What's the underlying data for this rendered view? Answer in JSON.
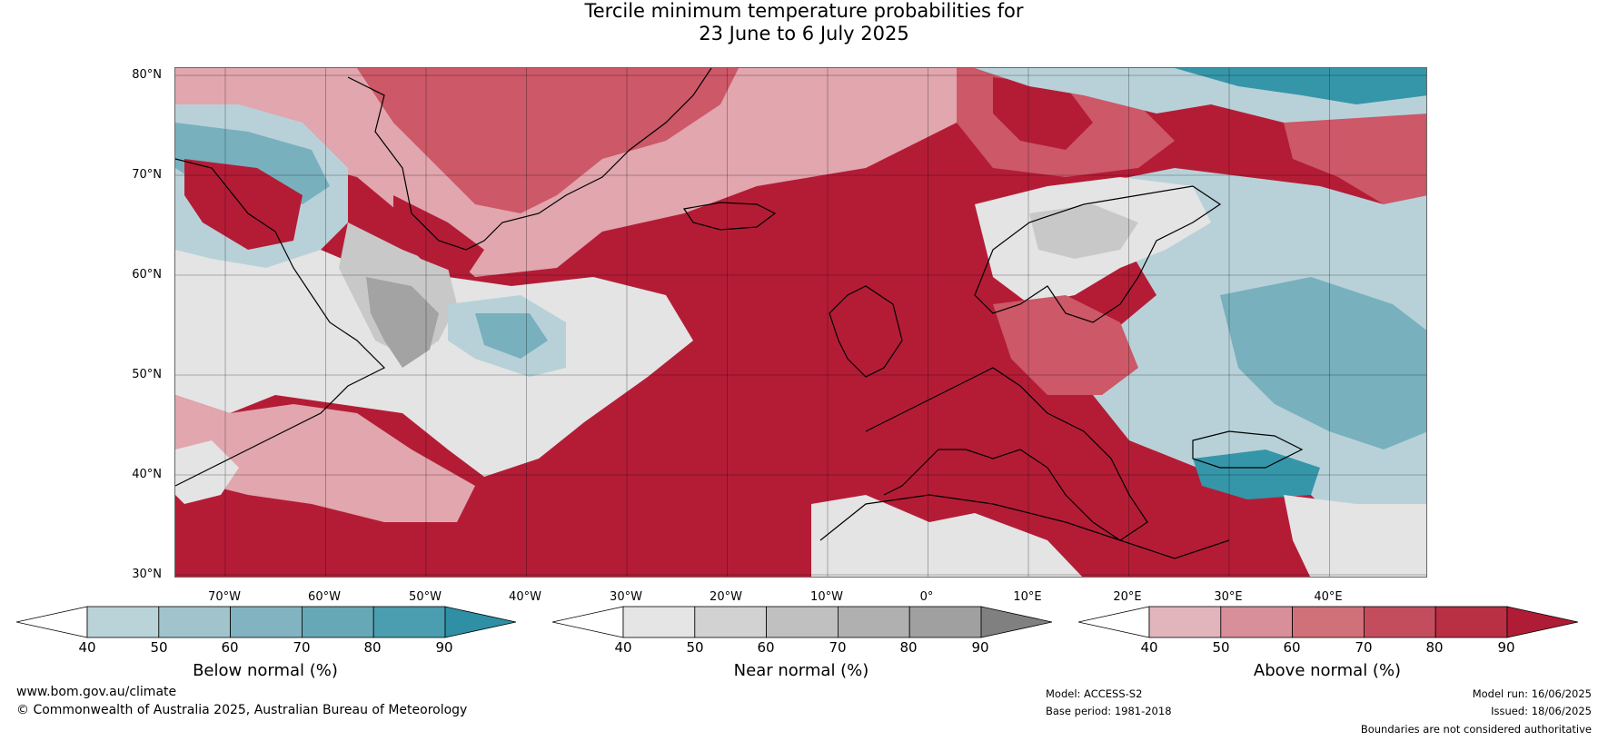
{
  "title": {
    "line1": "Tercile minimum temperature probabilities for",
    "line2": "23 June to 6 July 2025"
  },
  "map": {
    "lat_labels": [
      "80°N",
      "70°N",
      "60°N",
      "50°N",
      "40°N",
      "30°N"
    ],
    "lon_labels": [
      "70°W",
      "60°W",
      "50°W",
      "40°W",
      "30°W",
      "20°W",
      "10°W",
      "0°",
      "10°E",
      "20°E",
      "30°E",
      "40°E"
    ],
    "region_colors": {
      "above_high": "#b41c36",
      "above_mid": "#cc5868",
      "above_low": "#e1a6ae",
      "near_low": "#e4e4e4",
      "near_mid": "#c8c8c8",
      "near_high": "#a3a3a3",
      "below_low": "#b8d1d8",
      "below_mid": "#78b0bd",
      "below_high": "#3596a9"
    }
  },
  "colorbars": [
    {
      "title": "Below normal (%)",
      "ticks": [
        "40",
        "50",
        "60",
        "70",
        "80",
        "90"
      ],
      "colors": [
        "#ffffff",
        "#bad3d9",
        "#a1c3cc",
        "#82b3c0",
        "#66a8b5",
        "#4a9eb0",
        "#2e8fa5"
      ]
    },
    {
      "title": "Near normal (%)",
      "ticks": [
        "40",
        "50",
        "60",
        "70",
        "80",
        "90"
      ],
      "colors": [
        "#ffffff",
        "#e5e5e5",
        "#d2d2d2",
        "#c0c0c0",
        "#b0b0b0",
        "#a0a0a0",
        "#808080"
      ]
    },
    {
      "title": "Above normal (%)",
      "ticks": [
        "40",
        "50",
        "60",
        "70",
        "80",
        "90"
      ],
      "colors": [
        "#ffffff",
        "#e2b5bc",
        "#d88f99",
        "#d07179",
        "#c34d5d",
        "#b92f44",
        "#b01c35"
      ]
    }
  ],
  "footer": {
    "url": "www.bom.gov.au/climate",
    "copyright": "© Commonwealth of Australia 2025, Australian Bureau of Meteorology",
    "model": "Model: ACCESS-S2",
    "base_period": "Base period: 1981-2018",
    "model_run": "Model run: 16/06/2025",
    "issued": "Issued: 18/06/2025",
    "disclaimer": "Boundaries are not considered authoritative"
  }
}
